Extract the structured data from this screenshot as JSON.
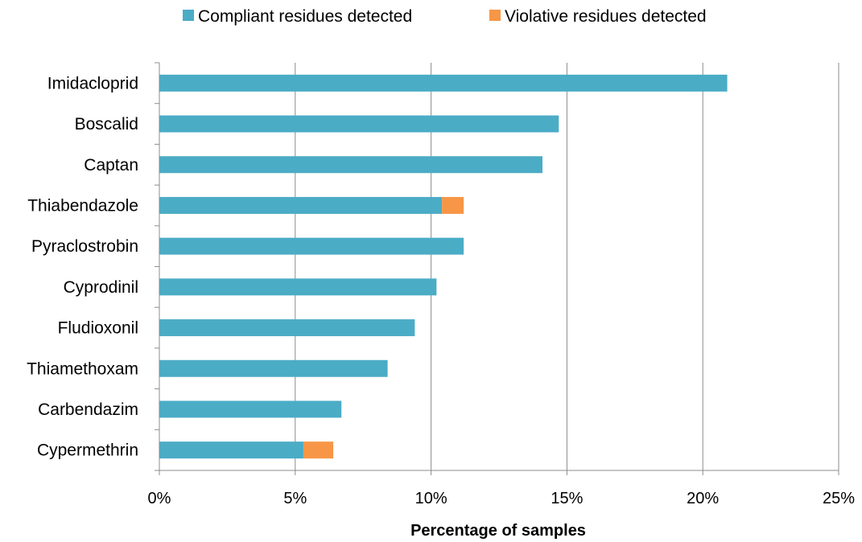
{
  "chart_data": {
    "type": "bar",
    "orientation": "horizontal",
    "stacked": true,
    "categories": [
      "Imidacloprid",
      "Boscalid",
      "Captan",
      "Thiabendazole",
      "Pyraclostrobin",
      "Cyprodinil",
      "Fludioxonil",
      "Thiamethoxam",
      "Carbendazim",
      "Cypermethrin"
    ],
    "series": [
      {
        "name": "Compliant residues detected",
        "color": "#4BACC6",
        "values": [
          20.9,
          14.7,
          14.1,
          10.4,
          11.2,
          10.2,
          9.4,
          8.4,
          6.7,
          5.3
        ]
      },
      {
        "name": "Violative residues detected",
        "color": "#F79646",
        "values": [
          0,
          0,
          0,
          0.8,
          0,
          0,
          0,
          0,
          0,
          1.1
        ]
      }
    ],
    "xlabel": "Percentage of samples",
    "ylabel": "",
    "xlim": [
      0,
      25
    ],
    "xticks": [
      "0%",
      "5%",
      "10%",
      "15%",
      "20%",
      "25%"
    ],
    "grid": true,
    "legend_position": "top"
  }
}
